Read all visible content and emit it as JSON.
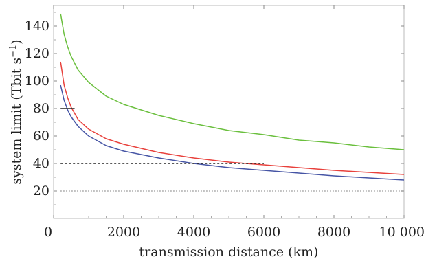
{
  "chart_data": {
    "type": "line",
    "title": "",
    "xlabel": "transmission distance (km)",
    "ylabel_main": "system limit (Tbit s",
    "ylabel_sup": "−1",
    "ylabel_close": ")",
    "xlim": [
      0,
      10000
    ],
    "ylim": [
      0,
      155
    ],
    "grid": false,
    "legend": "none",
    "xticks": [
      0,
      2000,
      4000,
      6000,
      8000,
      10000
    ],
    "xtick_labels": [
      "0",
      "2000",
      "4000",
      "6000",
      "8000",
      "10 000"
    ],
    "yticks": [
      20,
      40,
      60,
      80,
      100,
      120,
      140
    ],
    "ytick_labels": [
      "20",
      "40",
      "60",
      "80",
      "100",
      "120",
      "140"
    ],
    "series": [
      {
        "color": "#6abf3d",
        "style": "solid",
        "x": [
          200,
          300,
          400,
          500,
          700,
          1000,
          1500,
          2000,
          3000,
          4000,
          5000,
          6000,
          7000,
          8000,
          9000,
          10000
        ],
        "values": [
          149,
          134,
          125,
          118,
          108,
          99,
          89,
          83,
          75,
          69,
          64,
          61,
          57,
          55,
          52,
          50
        ]
      },
      {
        "color": "#e8413c",
        "style": "solid",
        "x": [
          200,
          300,
          400,
          500,
          700,
          1000,
          1500,
          2000,
          3000,
          4000,
          5000,
          6000,
          7000,
          8000,
          9000,
          10000
        ],
        "values": [
          114,
          97,
          88,
          81,
          72,
          65,
          58,
          54,
          48,
          44,
          41,
          39,
          37,
          35,
          33.5,
          32
        ]
      },
      {
        "color": "#4655a5",
        "style": "solid",
        "x": [
          200,
          300,
          400,
          500,
          700,
          1000,
          1500,
          2000,
          3000,
          4000,
          5000,
          6000,
          7000,
          8000,
          9000,
          10000
        ],
        "values": [
          97,
          86,
          79,
          74,
          67,
          60,
          53,
          49,
          44,
          40,
          37,
          35,
          33,
          31,
          29.5,
          28
        ]
      },
      {
        "color": "#222222",
        "style": "solid",
        "x": [
          200,
          600
        ],
        "values": [
          80,
          80
        ]
      },
      {
        "color": "#222222",
        "style": "dashed",
        "x": [
          200,
          6000
        ],
        "values": [
          40,
          40
        ]
      },
      {
        "color": "#999999",
        "style": "dotted",
        "x": [
          200,
          10000
        ],
        "values": [
          20,
          20
        ]
      }
    ]
  }
}
